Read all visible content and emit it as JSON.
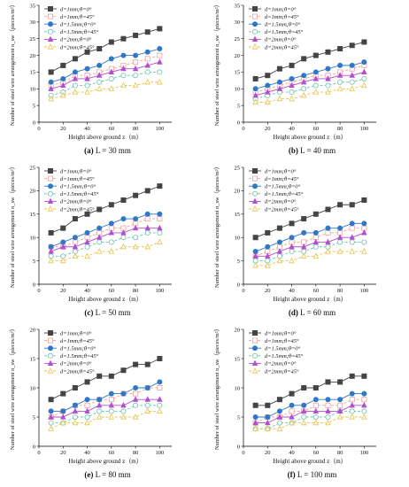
{
  "figure": {
    "panels": [
      {
        "caption_tag": "(a)",
        "caption_value": "L = 30 mm"
      },
      {
        "caption_tag": "(b)",
        "caption_value": "L = 40 mm"
      },
      {
        "caption_tag": "(c)",
        "caption_value": "L = 50 mm"
      },
      {
        "caption_tag": "(d)",
        "caption_value": "L = 60 mm"
      },
      {
        "caption_tag": "(e)",
        "caption_value": "L = 80 mm"
      },
      {
        "caption_tag": "(f)",
        "caption_value": "L = 100 mm"
      }
    ]
  },
  "series_styles": [
    {
      "name": "d=1mm;θ=0°",
      "color": "#444444",
      "dash": "none",
      "marker": "square"
    },
    {
      "name": "d=1mm;θ=45°",
      "color": "#f2a29a",
      "dash": "3,2",
      "marker": "square-open"
    },
    {
      "name": "d=1.5mm;θ=0°",
      "color": "#2f78c8",
      "dash": "none",
      "marker": "circle"
    },
    {
      "name": "d=1.5mm;θ=45°",
      "color": "#6cc2b0",
      "dash": "3,2",
      "marker": "circle-open"
    },
    {
      "name": "d=2mm;θ=0°",
      "color": "#b24fd0",
      "dash": "none",
      "marker": "triangle"
    },
    {
      "name": "d=2mm;θ=45°",
      "color": "#e8c34a",
      "dash": "3,2",
      "marker": "triangle-open"
    }
  ],
  "chart_data": [
    {
      "type": "line",
      "xlabel": "Height above ground z（m）",
      "ylabel": "Number of steel wire arrangement n_sw（pieces/m²）",
      "x": [
        10,
        20,
        30,
        40,
        50,
        60,
        70,
        80,
        90,
        100
      ],
      "xticks": [
        0,
        20,
        40,
        60,
        80,
        100
      ],
      "ylim": [
        0,
        35
      ],
      "yticks": [
        0,
        5,
        10,
        15,
        20,
        25,
        30,
        35
      ],
      "legend": "top-left",
      "series": [
        {
          "name": "d=1mm;θ=0°",
          "values": [
            15,
            17,
            19,
            21,
            22,
            24,
            25,
            26,
            27,
            28
          ]
        },
        {
          "name": "d=1mm;θ=45°",
          "values": [
            11,
            12,
            14,
            14,
            15,
            16,
            17,
            18,
            19,
            20
          ]
        },
        {
          "name": "d=1.5mm;θ=0°",
          "values": [
            12,
            13,
            15,
            16,
            17,
            19,
            20,
            20,
            21,
            22
          ]
        },
        {
          "name": "d=1.5mm;θ=45°",
          "values": [
            8,
            9,
            11,
            11,
            12,
            13,
            14,
            14,
            15,
            15
          ]
        },
        {
          "name": "d=2mm;θ=0°",
          "values": [
            10,
            11,
            13,
            13,
            14,
            15,
            16,
            16,
            17,
            18
          ]
        },
        {
          "name": "d=2mm;θ=45°",
          "values": [
            7,
            8,
            9,
            9,
            10,
            10,
            11,
            11,
            12,
            12
          ]
        }
      ]
    },
    {
      "type": "line",
      "xlabel": "Height above ground z（m）",
      "ylabel": "Number of steel wire arrangement n_sw（pieces/m²）",
      "x": [
        10,
        20,
        30,
        40,
        50,
        60,
        70,
        80,
        90,
        100
      ],
      "xticks": [
        0,
        20,
        40,
        60,
        80,
        100
      ],
      "ylim": [
        0,
        35
      ],
      "yticks": [
        0,
        5,
        10,
        15,
        20,
        25,
        30,
        35
      ],
      "legend": "top-left",
      "series": [
        {
          "name": "d=1mm;θ=0°",
          "values": [
            13,
            14,
            16,
            17,
            19,
            20,
            21,
            22,
            23,
            24
          ]
        },
        {
          "name": "d=1mm;θ=45°",
          "values": [
            9,
            10,
            11,
            12,
            13,
            14,
            14,
            15,
            16,
            17
          ]
        },
        {
          "name": "d=1.5mm;θ=0°",
          "values": [
            10,
            11,
            12,
            13,
            14,
            15,
            16,
            17,
            17,
            18
          ]
        },
        {
          "name": "d=1.5mm;θ=45°",
          "values": [
            7,
            8,
            9,
            9,
            10,
            11,
            11,
            12,
            12,
            13
          ]
        },
        {
          "name": "d=2mm;θ=0°",
          "values": [
            8,
            9,
            10,
            11,
            12,
            13,
            13,
            14,
            14,
            15
          ]
        },
        {
          "name": "d=2mm;θ=45°",
          "values": [
            6,
            6,
            7,
            7,
            8,
            9,
            9,
            10,
            10,
            11
          ]
        }
      ]
    },
    {
      "type": "line",
      "xlabel": "Height above ground z（m）",
      "ylabel": "Number of steel wire arrangement n_sw（pieces/m²）",
      "x": [
        10,
        20,
        30,
        40,
        50,
        60,
        70,
        80,
        90,
        100
      ],
      "xticks": [
        0,
        20,
        40,
        60,
        80,
        100
      ],
      "ylim": [
        0,
        25
      ],
      "yticks": [
        0,
        5,
        10,
        15,
        20,
        25
      ],
      "legend": "top-left",
      "series": [
        {
          "name": "d=1mm;θ=0°",
          "values": [
            11,
            12,
            14,
            15,
            16,
            17,
            18,
            19,
            20,
            21
          ]
        },
        {
          "name": "d=1mm;θ=45°",
          "values": [
            8,
            8,
            9,
            10,
            11,
            12,
            12,
            13,
            14,
            14
          ]
        },
        {
          "name": "d=1.5mm;θ=0°",
          "values": [
            8,
            9,
            10,
            11,
            12,
            13,
            14,
            14,
            15,
            15
          ]
        },
        {
          "name": "d=1.5mm;θ=45°",
          "values": [
            6,
            6,
            7,
            8,
            9,
            9,
            10,
            10,
            11,
            11
          ]
        },
        {
          "name": "d=2mm;θ=0°",
          "values": [
            7,
            8,
            8,
            9,
            10,
            11,
            11,
            12,
            12,
            12
          ]
        },
        {
          "name": "d=2mm;θ=45°",
          "values": [
            5,
            5,
            6,
            6,
            7,
            7,
            8,
            8,
            8,
            9
          ]
        }
      ]
    },
    {
      "type": "line",
      "xlabel": "Height above ground z（m）",
      "ylabel": "Number of steel wire arrangement n_sw（pieces/m²）",
      "x": [
        10,
        20,
        30,
        40,
        50,
        60,
        70,
        80,
        90,
        100
      ],
      "xticks": [
        0,
        20,
        40,
        60,
        80,
        100
      ],
      "ylim": [
        0,
        25
      ],
      "yticks": [
        0,
        5,
        10,
        15,
        20,
        25
      ],
      "legend": "top-left",
      "series": [
        {
          "name": "d=1mm;θ=0°",
          "values": [
            10,
            11,
            12,
            13,
            14,
            15,
            16,
            17,
            17,
            18
          ]
        },
        {
          "name": "d=1mm;θ=45°",
          "values": [
            6,
            7,
            8,
            9,
            9,
            10,
            11,
            11,
            12,
            12
          ]
        },
        {
          "name": "d=1.5mm;θ=0°",
          "values": [
            7,
            8,
            9,
            10,
            11,
            11,
            12,
            12,
            13,
            13
          ]
        },
        {
          "name": "d=1.5mm;θ=45°",
          "values": [
            5,
            5,
            6,
            7,
            7,
            8,
            8,
            9,
            9,
            9
          ]
        },
        {
          "name": "d=2mm;θ=0°",
          "values": [
            6,
            6,
            7,
            8,
            8,
            9,
            9,
            10,
            10,
            11
          ]
        },
        {
          "name": "d=2mm;θ=45°",
          "values": [
            4,
            4,
            5,
            5,
            6,
            6,
            7,
            7,
            7,
            7
          ]
        }
      ]
    },
    {
      "type": "line",
      "xlabel": "Height above ground z（m）",
      "ylabel": "Number of steel wire arrangement n_sw（pieces/m²）",
      "x": [
        10,
        20,
        30,
        40,
        50,
        60,
        70,
        80,
        90,
        100
      ],
      "xticks": [
        0,
        20,
        40,
        60,
        80,
        100
      ],
      "ylim": [
        0,
        20
      ],
      "yticks": [
        0,
        5,
        10,
        15,
        20
      ],
      "legend": "top-left",
      "series": [
        {
          "name": "d=1mm;θ=0°",
          "values": [
            8,
            9,
            10,
            11,
            12,
            12,
            13,
            14,
            14,
            15
          ]
        },
        {
          "name": "d=1mm;θ=45°",
          "values": [
            5,
            6,
            7,
            7,
            8,
            8,
            9,
            9,
            10,
            10
          ]
        },
        {
          "name": "d=1.5mm;θ=0°",
          "values": [
            6,
            6,
            7,
            8,
            8,
            9,
            9,
            10,
            10,
            11
          ]
        },
        {
          "name": "d=1.5mm;θ=45°",
          "values": [
            4,
            4,
            5,
            5,
            6,
            6,
            6,
            7,
            7,
            7
          ]
        },
        {
          "name": "d=2mm;θ=0°",
          "values": [
            5,
            5,
            6,
            6,
            7,
            7,
            7,
            8,
            8,
            8
          ]
        },
        {
          "name": "d=2mm;θ=45°",
          "values": [
            3,
            4,
            4,
            4,
            5,
            5,
            5,
            5,
            6,
            6
          ]
        }
      ]
    },
    {
      "type": "line",
      "xlabel": "Height above ground z（m）",
      "ylabel": "Number of steel wire arrangement n_sw（pieces/m²）",
      "x": [
        10,
        20,
        30,
        40,
        50,
        60,
        70,
        80,
        90,
        100
      ],
      "xticks": [
        0,
        20,
        40,
        60,
        80,
        100
      ],
      "ylim": [
        0,
        20
      ],
      "yticks": [
        0,
        5,
        10,
        15,
        20
      ],
      "legend": "top-left",
      "series": [
        {
          "name": "d=1mm;θ=0°",
          "values": [
            7,
            7,
            8,
            9,
            10,
            10,
            11,
            11,
            12,
            12
          ]
        },
        {
          "name": "d=1mm;θ=45°",
          "values": [
            4,
            5,
            5,
            6,
            6,
            7,
            7,
            7,
            8,
            8
          ]
        },
        {
          "name": "d=1.5mm;θ=0°",
          "values": [
            5,
            5,
            6,
            7,
            7,
            8,
            8,
            8,
            9,
            9
          ]
        },
        {
          "name": "d=1.5mm;θ=45°",
          "values": [
            3,
            3,
            4,
            4,
            5,
            5,
            5,
            6,
            6,
            6
          ]
        },
        {
          "name": "d=2mm;θ=0°",
          "values": [
            4,
            4,
            5,
            5,
            6,
            6,
            6,
            6,
            7,
            7
          ]
        },
        {
          "name": "d=2mm;θ=45°",
          "values": [
            3,
            3,
            3,
            4,
            4,
            4,
            4,
            5,
            5,
            5
          ]
        }
      ]
    }
  ]
}
